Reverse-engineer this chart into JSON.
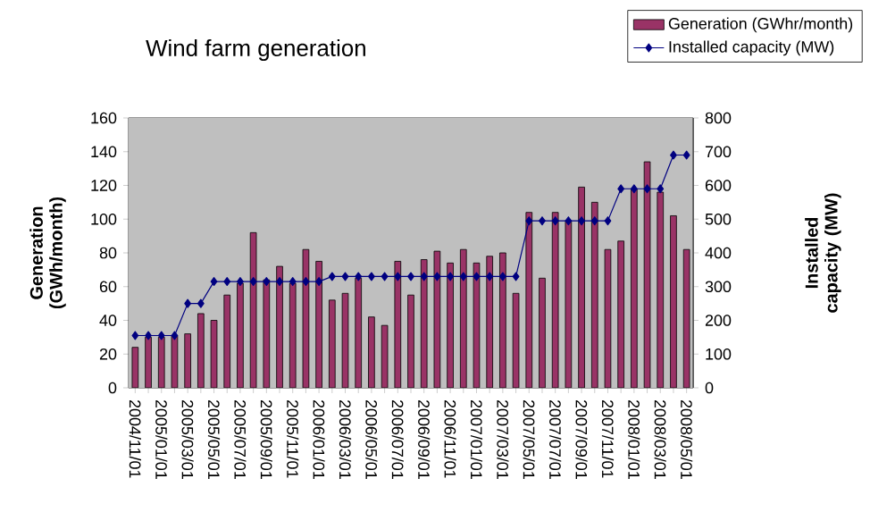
{
  "chart_data": {
    "type": "bar",
    "title": "Wind farm generation",
    "ylabel": "Generation (GWh/month)",
    "y2label": "Installed capacity (MW)",
    "categories": [
      "2004/11/01",
      null,
      "2005/01/01",
      null,
      "2005/03/01",
      null,
      "2005/05/01",
      null,
      "2005/07/01",
      null,
      "2005/09/01",
      null,
      "2005/11/01",
      null,
      "2006/01/01",
      null,
      "2006/03/01",
      null,
      "2006/05/01",
      null,
      "2006/07/01",
      null,
      "2006/09/01",
      null,
      "2006/11/01",
      null,
      "2007/01/01",
      null,
      "2007/03/01",
      null,
      "2007/05/01",
      null,
      "2007/07/01",
      null,
      "2007/09/01",
      null,
      "2007/11/01",
      null,
      "2008/01/01",
      null,
      "2008/03/01",
      null,
      "2008/05/01"
    ],
    "series": [
      {
        "name": "Generation (GWhr/month)",
        "color": "#993366",
        "values": [
          24,
          30,
          30,
          31,
          32,
          44,
          40,
          55,
          62,
          92,
          64,
          72,
          62,
          82,
          75,
          52,
          56,
          65,
          42,
          37,
          75,
          55,
          76,
          81,
          74,
          82,
          74,
          78,
          80,
          56,
          104,
          65,
          104,
          99,
          119,
          110,
          82,
          87,
          118,
          134,
          116,
          102,
          82
        ]
      },
      {
        "name": "Installed capacity (MW)",
        "type": "line",
        "axis": "y2",
        "color": "#000080",
        "marker": "diamond",
        "values": [
          155,
          155,
          155,
          155,
          250,
          250,
          315,
          315,
          315,
          315,
          315,
          315,
          315,
          315,
          315,
          330,
          330,
          330,
          330,
          330,
          330,
          330,
          330,
          330,
          330,
          330,
          330,
          330,
          330,
          330,
          495,
          495,
          495,
          495,
          495,
          495,
          495,
          590,
          590,
          590,
          590,
          690,
          690
        ]
      }
    ],
    "ylim": [
      0,
      160
    ],
    "yticks": [
      0,
      20,
      40,
      60,
      80,
      100,
      120,
      140,
      160
    ],
    "y2lim": [
      0,
      800
    ],
    "y2ticks": [
      0,
      100,
      200,
      300,
      400,
      500,
      600,
      700,
      800
    ],
    "grid": false,
    "legend": "top right"
  }
}
